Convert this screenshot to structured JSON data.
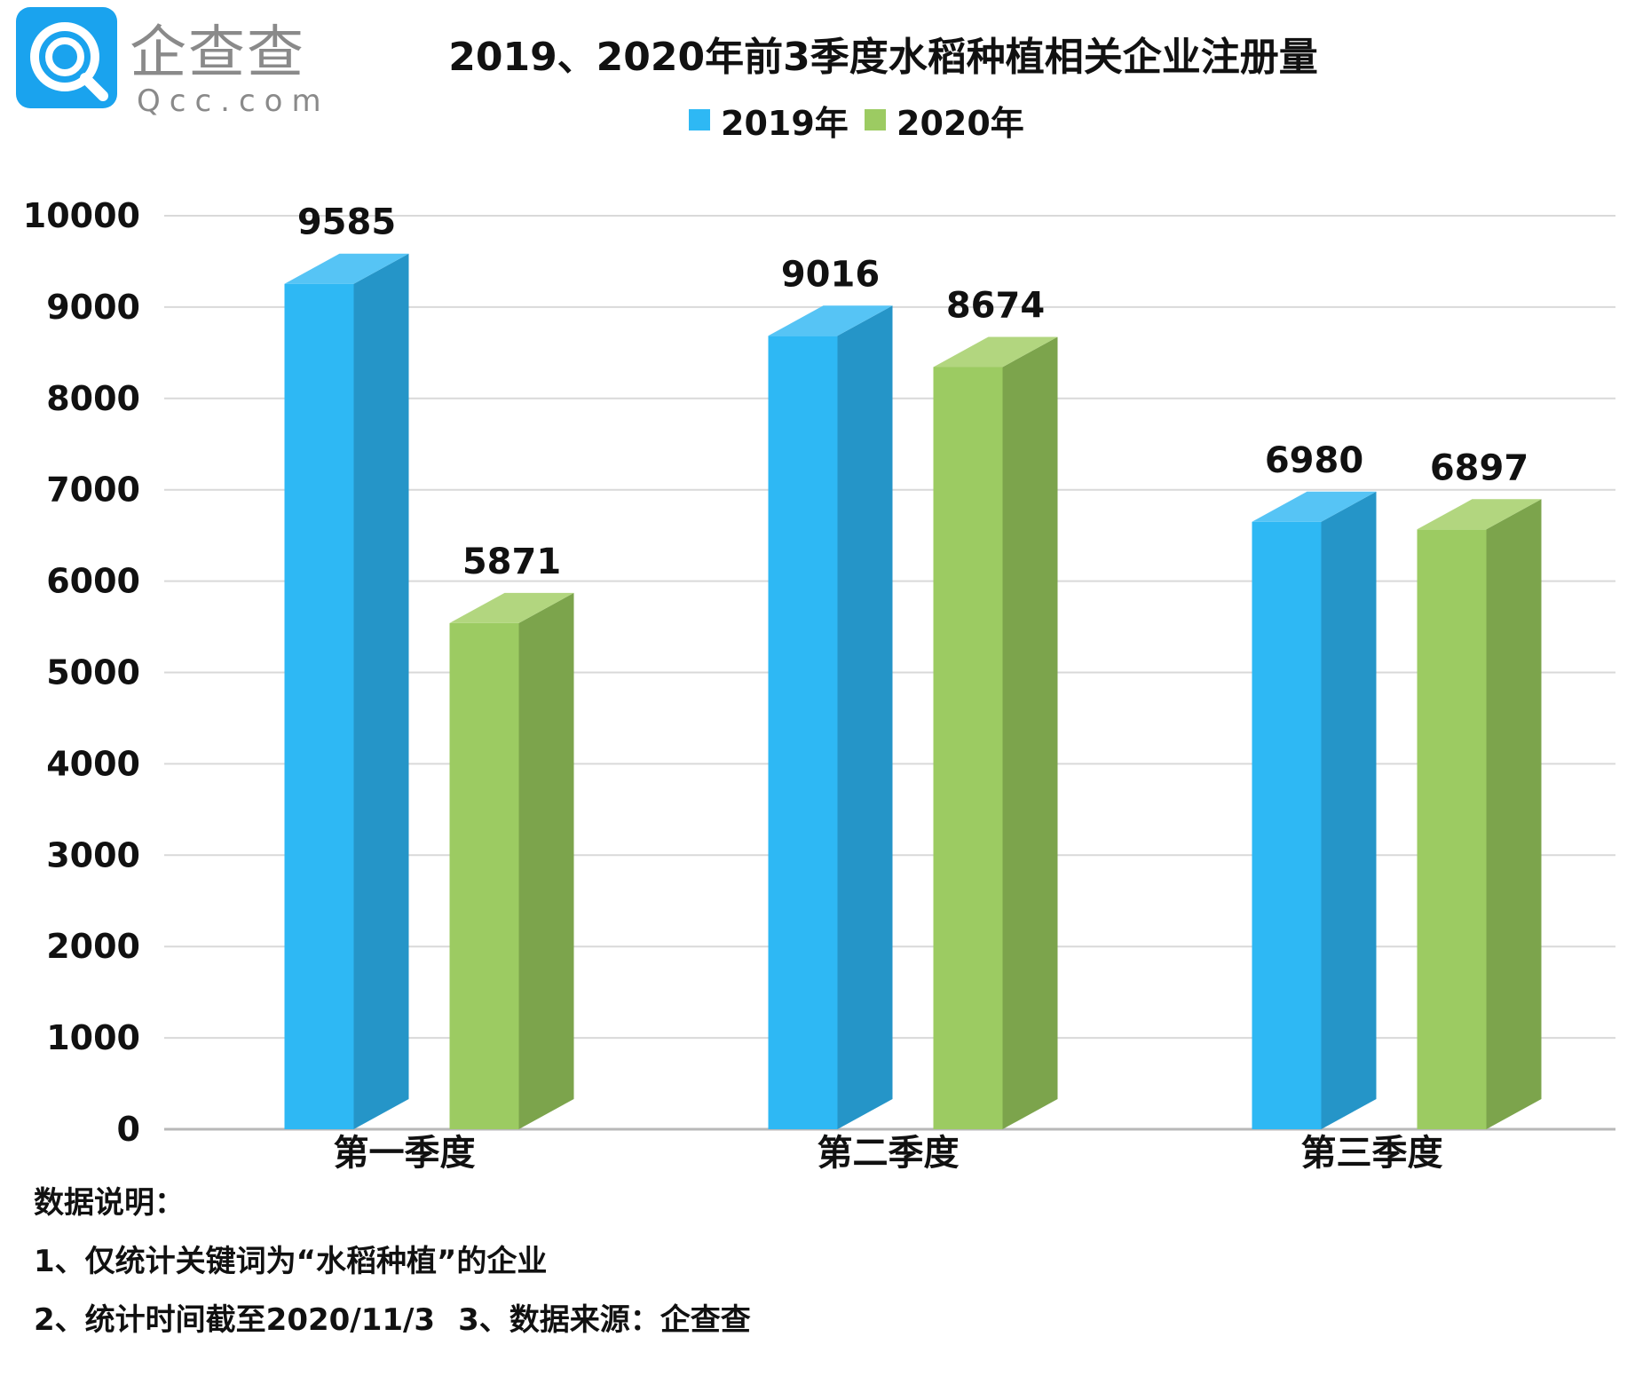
{
  "logo": {
    "name_cn": "企查查",
    "name_en": "Qcc.com"
  },
  "title": "2019、2020年前3季度水稻种植相关企业注册量",
  "legend": [
    {
      "label": "2019年",
      "color": "#2eb8f4"
    },
    {
      "label": "2020年",
      "color": "#9ccb62"
    }
  ],
  "chart_data": {
    "type": "bar",
    "title": "2019、2020年前3季度水稻种植相关企业注册量",
    "categories": [
      "第一季度",
      "第二季度",
      "第三季度"
    ],
    "series": [
      {
        "name": "2019年",
        "values": [
          9585,
          9016,
          6980
        ],
        "color": "#2eb8f4",
        "side_color": "#2595c8",
        "top_color": "#56c4f5"
      },
      {
        "name": "2020年",
        "values": [
          5871,
          8674,
          6897
        ],
        "color": "#9ccb62",
        "side_color": "#7ca44c",
        "top_color": "#b2d67f"
      }
    ],
    "yticks": [
      "0",
      "1000",
      "2000",
      "3000",
      "4000",
      "5000",
      "6000",
      "7000",
      "8000",
      "9000",
      "10000"
    ],
    "ylim": [
      0,
      10000
    ],
    "grid": true,
    "legend_position": "top-center",
    "style": "3d-column"
  },
  "notes": {
    "heading": "数据说明：",
    "line1": "1、仅统计关键词为“水稻种植”的企业",
    "line2a": "2、统计时间截至2020/11/3",
    "line2b": "3、数据来源：企查查"
  }
}
